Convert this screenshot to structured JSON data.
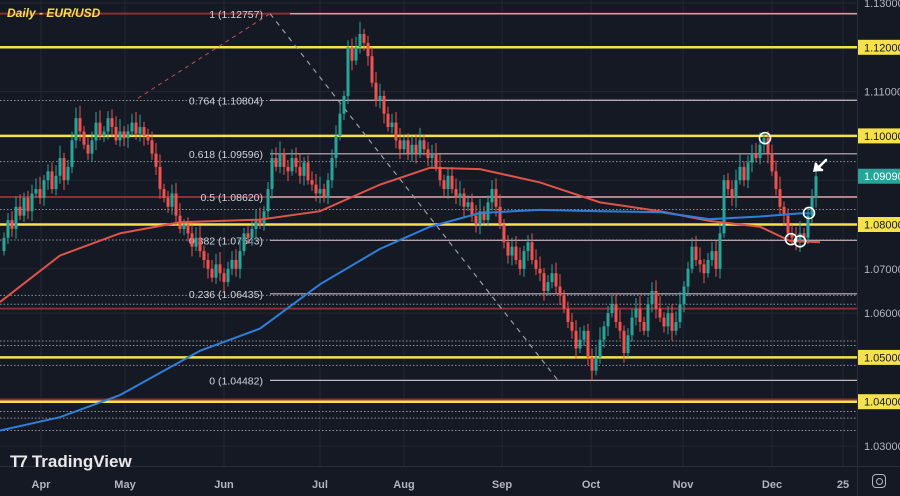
{
  "title": "Daily - EUR/USD",
  "logo": {
    "mark": "T7",
    "text": "TradingView"
  },
  "colors": {
    "background": "#151924",
    "grid": "#232735",
    "up_candle": "#26a69a",
    "down_candle": "#ef5350",
    "ma_red": "#e0534a",
    "ma_blue": "#2f7fd8",
    "support_yellow": "#f5e14a",
    "fib_line": "#c9b6bd",
    "red_hline": "#8b2e36",
    "current_price_bg": "#26a69a",
    "axis_text": "#b2b5be"
  },
  "price_axis": {
    "labels": [
      "1.13000",
      "1.12000",
      "1.11000",
      "1.10000",
      "1.09090",
      "1.08000",
      "1.07000",
      "1.06000",
      "1.05000",
      "1.04000",
      "1.03000"
    ],
    "highlighted": {
      "1.12000": "yellow",
      "1.10000": "yellow",
      "1.08000": "yellow",
      "1.05000": "yellow",
      "1.04000": "yellow",
      "1.09090": "green"
    }
  },
  "time_axis": {
    "labels": [
      "Apr",
      "May",
      "Jun",
      "Jul",
      "Aug",
      "Sep",
      "Oct",
      "Nov",
      "Dec",
      "25"
    ]
  },
  "settings_icon": "gear-icon",
  "chart_data": {
    "type": "candlestick",
    "title": "Daily - EUR/USD",
    "xlabel": "",
    "ylabel": "",
    "ylim": [
      1.0265,
      1.1307
    ],
    "x_ticks": [
      "Apr",
      "May",
      "Jun",
      "Jul",
      "Aug",
      "Sep",
      "Oct",
      "Nov",
      "Dec",
      "25"
    ],
    "y_ticks": [
      1.03,
      1.04,
      1.05,
      1.06,
      1.07,
      1.08,
      1.09,
      1.1,
      1.11,
      1.12,
      1.13
    ],
    "current_price": 1.0909,
    "horizontal_levels": {
      "yellow_support_resistance": [
        1.12,
        1.1,
        1.08,
        1.05,
        1.04
      ],
      "red_levels": [
        1.1276,
        1.0862,
        1.061,
        1.0405
      ]
    },
    "fibonacci_retracement": [
      {
        "ratio": "1",
        "price": 1.12757
      },
      {
        "ratio": "0.764",
        "price": 1.10804
      },
      {
        "ratio": "0.618",
        "price": 1.09596
      },
      {
        "ratio": "0.5",
        "price": 1.0862
      },
      {
        "ratio": "0.382",
        "price": 1.07643
      },
      {
        "ratio": "0.236",
        "price": 1.06435
      },
      {
        "ratio": "0",
        "price": 1.04482
      }
    ],
    "fib_labels": [
      "1 (1.12757)",
      "0.764 (1.10804)",
      "0.618 (1.09596)",
      "0.5 (1.08620)",
      "0.382 (1.07643)",
      "0.236 (1.06435)",
      "0 (1.04482)"
    ],
    "moving_averages": [
      {
        "name": "MA (red)",
        "color": "#e0534a",
        "approx_path": [
          [
            0,
            1.0625
          ],
          [
            60,
            1.073
          ],
          [
            120,
            1.078
          ],
          [
            180,
            1.0805
          ],
          [
            260,
            1.0811
          ],
          [
            320,
            1.083
          ],
          [
            380,
            1.089
          ],
          [
            430,
            1.0928
          ],
          [
            480,
            1.0925
          ],
          [
            540,
            1.0895
          ],
          [
            600,
            1.085
          ],
          [
            660,
            1.083
          ],
          [
            710,
            1.0808
          ],
          [
            760,
            1.0795
          ],
          [
            790,
            1.0763
          ],
          [
            820,
            1.076
          ]
        ]
      },
      {
        "name": "MA (blue)",
        "color": "#2f7fd8",
        "approx_path": [
          [
            0,
            1.0335
          ],
          [
            60,
            1.0365
          ],
          [
            120,
            1.0415
          ],
          [
            200,
            1.0515
          ],
          [
            260,
            1.0565
          ],
          [
            320,
            1.0665
          ],
          [
            380,
            1.0745
          ],
          [
            430,
            1.0795
          ],
          [
            480,
            1.0826
          ],
          [
            540,
            1.0833
          ],
          [
            600,
            1.083
          ],
          [
            660,
            1.0828
          ],
          [
            710,
            1.0812
          ],
          [
            760,
            1.0818
          ],
          [
            800,
            1.0825
          ],
          [
            810,
            1.0825
          ]
        ]
      }
    ],
    "annotations": [
      {
        "type": "circle",
        "near": "Nov high ~1.0997"
      },
      {
        "type": "circle",
        "near": "Dec low ~1.0765"
      },
      {
        "type": "circle",
        "near": "Dec low ~1.0760"
      },
      {
        "type": "circle",
        "near": "Blue MA cross ~1.0825"
      },
      {
        "type": "arrow",
        "pointing_at": "last candle ~1.0909"
      }
    ],
    "dotted_levels": [
      1.108,
      1.0942,
      1.0834,
      1.0765,
      1.064,
      1.062,
      1.0537,
      1.0527,
      1.0482,
      1.0378,
      1.0363,
      1.0335
    ]
  }
}
